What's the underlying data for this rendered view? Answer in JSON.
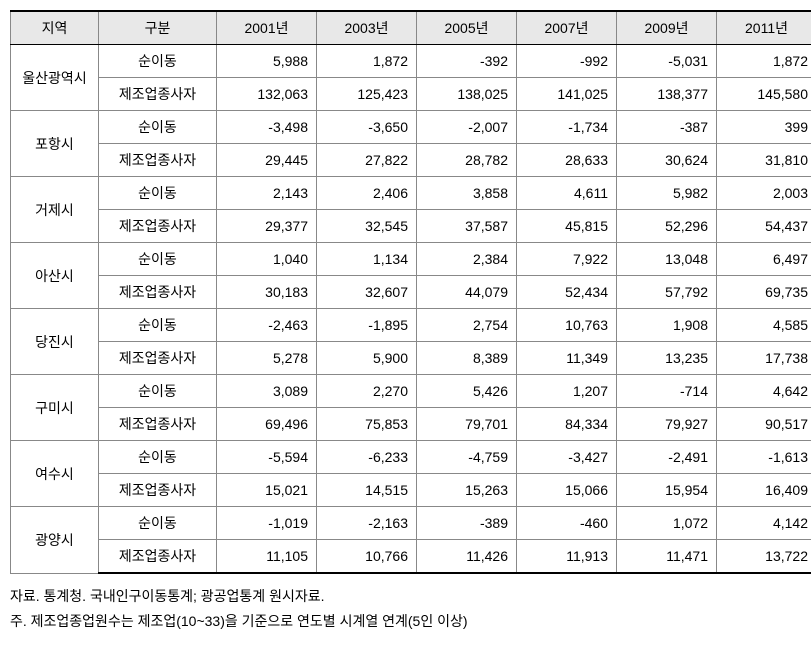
{
  "headers": {
    "region": "지역",
    "category": "구분",
    "y2001": "2001년",
    "y2003": "2003년",
    "y2005": "2005년",
    "y2007": "2007년",
    "y2009": "2009년",
    "y2011": "2011년"
  },
  "category_labels": {
    "net_migration": "순이동",
    "mfg_workers": "제조업종사자"
  },
  "regions": [
    {
      "name": "울산광역시",
      "net_migration": [
        "5,988",
        "1,872",
        "-392",
        "-992",
        "-5,031",
        "1,872"
      ],
      "mfg_workers": [
        "132,063",
        "125,423",
        "138,025",
        "141,025",
        "138,377",
        "145,580"
      ]
    },
    {
      "name": "포항시",
      "net_migration": [
        "-3,498",
        "-3,650",
        "-2,007",
        "-1,734",
        "-387",
        "399"
      ],
      "mfg_workers": [
        "29,445",
        "27,822",
        "28,782",
        "28,633",
        "30,624",
        "31,810"
      ]
    },
    {
      "name": "거제시",
      "net_migration": [
        "2,143",
        "2,406",
        "3,858",
        "4,611",
        "5,982",
        "2,003"
      ],
      "mfg_workers": [
        "29,377",
        "32,545",
        "37,587",
        "45,815",
        "52,296",
        "54,437"
      ]
    },
    {
      "name": "아산시",
      "net_migration": [
        "1,040",
        "1,134",
        "2,384",
        "7,922",
        "13,048",
        "6,497"
      ],
      "mfg_workers": [
        "30,183",
        "32,607",
        "44,079",
        "52,434",
        "57,792",
        "69,735"
      ]
    },
    {
      "name": "당진시",
      "net_migration": [
        "-2,463",
        "-1,895",
        "2,754",
        "10,763",
        "1,908",
        "4,585"
      ],
      "mfg_workers": [
        "5,278",
        "5,900",
        "8,389",
        "11,349",
        "13,235",
        "17,738"
      ]
    },
    {
      "name": "구미시",
      "net_migration": [
        "3,089",
        "2,270",
        "5,426",
        "1,207",
        "-714",
        "4,642"
      ],
      "mfg_workers": [
        "69,496",
        "75,853",
        "79,701",
        "84,334",
        "79,927",
        "90,517"
      ]
    },
    {
      "name": "여수시",
      "net_migration": [
        "-5,594",
        "-6,233",
        "-4,759",
        "-3,427",
        "-2,491",
        "-1,613"
      ],
      "mfg_workers": [
        "15,021",
        "14,515",
        "15,263",
        "15,066",
        "15,954",
        "16,409"
      ]
    },
    {
      "name": "광양시",
      "net_migration": [
        "-1,019",
        "-2,163",
        "-389",
        "-460",
        "1,072",
        "4,142"
      ],
      "mfg_workers": [
        "11,105",
        "10,766",
        "11,426",
        "11,913",
        "11,471",
        "13,722"
      ]
    }
  ],
  "notes": {
    "line1": "자료. 통계청. 국내인구이동통계; 광공업통계 원시자료.",
    "line2": "주. 제조업종업원수는 제조업(10~33)을 기준으로 연도별 시계열 연계(5인 이상)"
  },
  "styling": {
    "header_bg": "#e8e8e8",
    "border_color": "#888888",
    "top_border_color": "#000000",
    "font_size_cell": 14,
    "font_size_notes": 14,
    "background": "#ffffff"
  }
}
